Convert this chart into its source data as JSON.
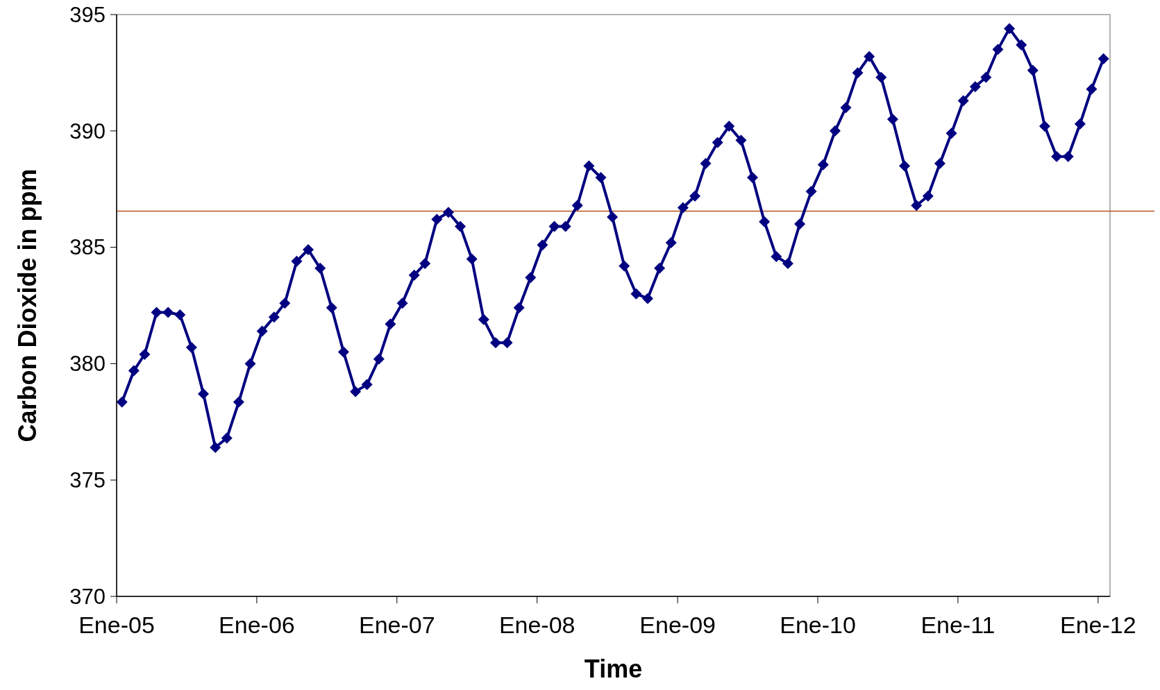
{
  "chart_data": {
    "type": "line",
    "xlabel": "Time",
    "ylabel": "Carbon Dioxide in ppm",
    "x": [
      "2005-01-15",
      "2005-02-15",
      "2005-03-15",
      "2005-04-15",
      "2005-05-15",
      "2005-06-15",
      "2005-07-15",
      "2005-08-15",
      "2005-09-15",
      "2005-10-15",
      "2005-11-15",
      "2005-12-15",
      "2006-01-15",
      "2006-02-15",
      "2006-03-15",
      "2006-04-15",
      "2006-05-15",
      "2006-06-15",
      "2006-07-15",
      "2006-08-15",
      "2006-09-15",
      "2006-10-15",
      "2006-11-15",
      "2006-12-15",
      "2007-01-15",
      "2007-02-15",
      "2007-03-15",
      "2007-04-15",
      "2007-05-15",
      "2007-06-15",
      "2007-07-15",
      "2007-08-15",
      "2007-09-15",
      "2007-10-15",
      "2007-11-15",
      "2007-12-15",
      "2008-01-15",
      "2008-02-15",
      "2008-03-15",
      "2008-04-15",
      "2008-05-15",
      "2008-06-15",
      "2008-07-15",
      "2008-08-15",
      "2008-09-15",
      "2008-10-15",
      "2008-11-15",
      "2008-12-15",
      "2009-01-15",
      "2009-02-15",
      "2009-03-15",
      "2009-04-15",
      "2009-05-15",
      "2009-06-15",
      "2009-07-15",
      "2009-08-15",
      "2009-09-15",
      "2009-10-15",
      "2009-11-15",
      "2009-12-15",
      "2010-01-15",
      "2010-02-15",
      "2010-03-15",
      "2010-04-15",
      "2010-05-15",
      "2010-06-15",
      "2010-07-15",
      "2010-08-15",
      "2010-09-15",
      "2010-10-15",
      "2010-11-15",
      "2010-12-15",
      "2011-01-15",
      "2011-02-15",
      "2011-03-15",
      "2011-04-15",
      "2011-05-15",
      "2011-06-15",
      "2011-07-15",
      "2011-08-15",
      "2011-09-15",
      "2011-10-15",
      "2011-11-15",
      "2011-12-15",
      "2012-01-15"
    ],
    "series": [
      {
        "color": "#000080",
        "values": [
          378.35,
          379.7,
          380.4,
          382.2,
          382.2,
          382.1,
          380.7,
          378.7,
          376.4,
          376.8,
          378.35,
          380.0,
          381.4,
          382.0,
          382.6,
          384.4,
          384.9,
          384.1,
          382.4,
          380.5,
          378.8,
          379.1,
          380.2,
          381.7,
          382.6,
          383.8,
          384.3,
          386.2,
          386.5,
          385.9,
          384.5,
          381.9,
          380.9,
          380.9,
          382.4,
          383.7,
          385.1,
          385.9,
          385.9,
          386.8,
          388.5,
          388.0,
          386.3,
          384.2,
          383.0,
          382.8,
          384.1,
          385.2,
          386.7,
          387.2,
          388.6,
          389.5,
          390.2,
          389.6,
          388.0,
          386.1,
          384.6,
          384.3,
          386.0,
          387.4,
          388.55,
          390.0,
          391.0,
          392.5,
          393.2,
          392.3,
          390.5,
          388.5,
          386.8,
          387.2,
          388.6,
          389.9,
          391.3,
          391.9,
          392.3,
          393.5,
          394.4,
          393.7,
          392.6,
          390.2,
          388.9,
          388.9,
          390.3,
          391.8,
          393.1
        ]
      }
    ],
    "xlim": [
      "2005-01-01",
      "2012-02-01"
    ],
    "xticks": [
      {
        "value": "2005-01-01",
        "label": "Ene-05"
      },
      {
        "value": "2006-01-01",
        "label": "Ene-06"
      },
      {
        "value": "2007-01-01",
        "label": "Ene-07"
      },
      {
        "value": "2008-01-01",
        "label": "Ene-08"
      },
      {
        "value": "2009-01-01",
        "label": "Ene-09"
      },
      {
        "value": "2010-01-01",
        "label": "Ene-10"
      },
      {
        "value": "2011-01-01",
        "label": "Ene-11"
      },
      {
        "value": "2012-01-01",
        "label": "Ene-12"
      }
    ],
    "ylim": [
      370,
      395
    ],
    "yticks": [
      370,
      375,
      380,
      385,
      390,
      395
    ],
    "ref_lines": [
      {
        "axis": "y",
        "value": 386.55,
        "color": "#b5541c"
      }
    ],
    "marker": "diamond",
    "line_style": "solid"
  }
}
